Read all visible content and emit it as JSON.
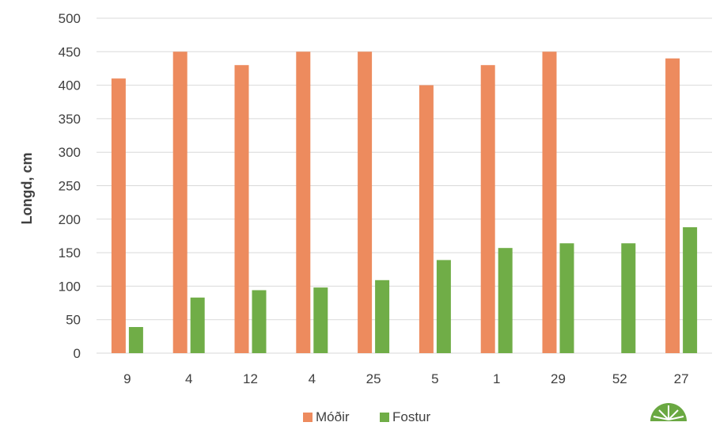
{
  "chart_data": {
    "type": "bar",
    "categories": [
      "9",
      "4",
      "12",
      "4",
      "25",
      "5",
      "1",
      "29",
      "52",
      "27"
    ],
    "series": [
      {
        "name": "Móðir",
        "values": [
          410,
          450,
          430,
          450,
          450,
          400,
          430,
          450,
          null,
          440
        ],
        "color": "#ED8B5E"
      },
      {
        "name": "Fostur",
        "values": [
          39,
          83,
          94,
          98,
          109,
          139,
          157,
          164,
          164,
          188
        ],
        "color": "#70AD47"
      }
    ],
    "ylabel": "Longd, cm",
    "xlabel": "",
    "ylim": [
      0,
      500
    ],
    "yticks": [
      0,
      50,
      100,
      150,
      200,
      250,
      300,
      350,
      400,
      450,
      500
    ],
    "grid": true,
    "legend_position": "bottom",
    "logo": "green-leaf-logo"
  }
}
